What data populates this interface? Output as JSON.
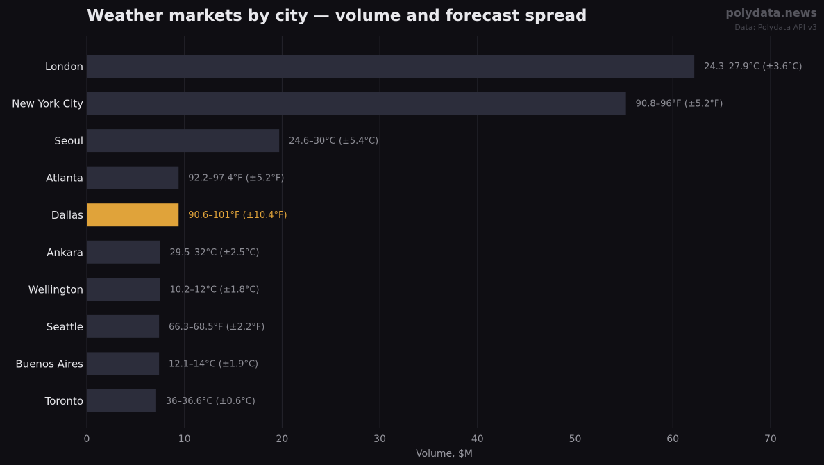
{
  "header": {
    "title": "Weather markets by city — volume and forecast spread",
    "brand": "polydata.news",
    "source": "Data: Polydata API v3"
  },
  "colors": {
    "background": "#0f0e13",
    "bar": "#2c2d3b",
    "highlight": "#e0a33a",
    "grid": "#24242c",
    "label_text": "#e6e6ea",
    "annotation_text": "#8e8e96",
    "tick_text": "#9a9aa2"
  },
  "chart_data": {
    "type": "bar",
    "orientation": "horizontal",
    "categories": [
      "London",
      "New York City",
      "Seoul",
      "Atlanta",
      "Dallas",
      "Ankara",
      "Wellington",
      "Seattle",
      "Buenos Aires",
      "Toronto"
    ],
    "values": [
      62.2,
      55.2,
      19.7,
      9.4,
      9.4,
      7.5,
      7.5,
      7.4,
      7.4,
      7.1
    ],
    "annotations": [
      "24.3–27.9°C (±3.6°C)",
      "90.8–96°F (±5.2°F)",
      "24.6–30°C (±5.4°C)",
      "92.2–97.4°F (±5.2°F)",
      "90.6–101°F (±10.4°F)",
      "29.5–32°C (±2.5°C)",
      "10.2–12°C (±1.8°C)",
      "66.3–68.5°F (±2.2°F)",
      "12.1–14°C (±1.9°C)",
      "36–36.6°C (±0.6°C)"
    ],
    "highlight": "Dallas",
    "xlabel": "Volume, $M",
    "ylabel": "",
    "xlim": [
      0,
      75
    ],
    "xticks": [
      0,
      10,
      20,
      30,
      40,
      50,
      60,
      70
    ],
    "grid": "vertical"
  }
}
